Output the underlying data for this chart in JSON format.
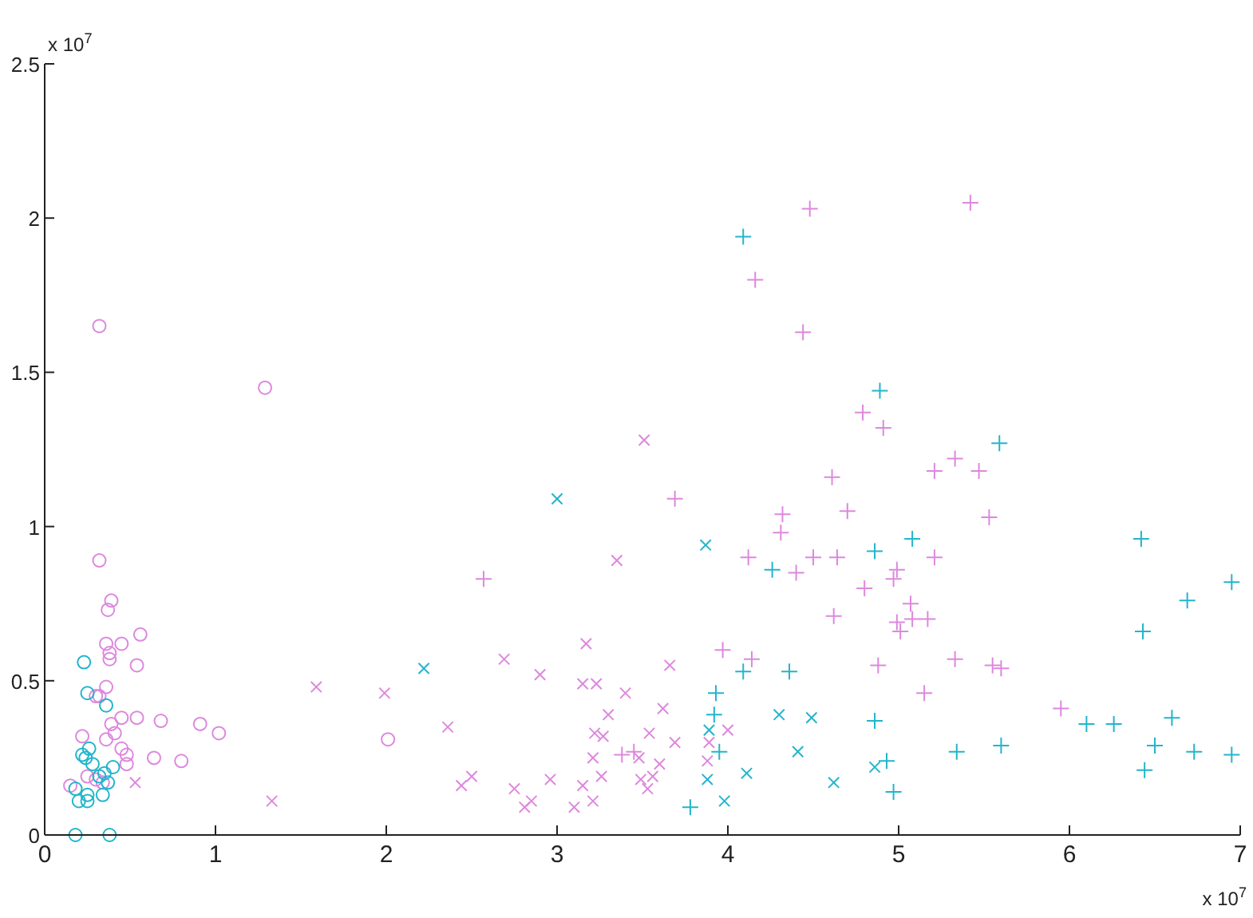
{
  "chart_data": {
    "type": "scatter",
    "xlim": [
      0,
      7
    ],
    "xticks": [
      0,
      1,
      2,
      3,
      4,
      5,
      6,
      7
    ],
    "ylim": [
      0,
      2.5
    ],
    "yticks": [
      0,
      0.5,
      1,
      1.5,
      2,
      2.5
    ],
    "grid": false,
    "annotations": [
      "x 10$^{7}$",
      "x 10$^{7}$"
    ],
    "series": [
      {
        "color": "#dd88dd",
        "marker": "circle",
        "x": [
          0.32,
          1.29,
          0.32,
          0.39,
          0.37,
          0.36,
          0.45,
          0.56,
          0.38,
          0.38,
          0.54,
          0.36,
          0.32,
          0.3,
          0.39,
          0.45,
          0.54,
          0.68,
          0.91,
          1.02,
          0.36,
          0.41,
          0.22,
          0.45,
          0.48,
          0.64,
          0.8,
          0.48,
          0.15,
          0.25,
          0.3,
          0.34,
          2.01
        ],
        "values": [
          1.65,
          1.45,
          0.89,
          0.76,
          0.73,
          0.62,
          0.62,
          0.65,
          0.59,
          0.57,
          0.55,
          0.48,
          0.45,
          0.45,
          0.36,
          0.38,
          0.38,
          0.37,
          0.36,
          0.33,
          0.31,
          0.33,
          0.32,
          0.28,
          0.26,
          0.25,
          0.24,
          0.23,
          0.16,
          0.19,
          0.18,
          0.17,
          0.31
        ]
      },
      {
        "color": "#22b5cc",
        "marker": "circle",
        "x": [
          0.23,
          0.25,
          0.36,
          0.26,
          0.22,
          0.24,
          0.28,
          0.4,
          0.35,
          0.32,
          0.37,
          0.18,
          0.25,
          0.34,
          0.2,
          0.25,
          0.18,
          0.38
        ],
        "values": [
          0.56,
          0.46,
          0.42,
          0.28,
          0.26,
          0.25,
          0.23,
          0.22,
          0.2,
          0.19,
          0.17,
          0.15,
          0.13,
          0.13,
          0.11,
          0.11,
          0,
          0
        ]
      },
      {
        "color": "#dd88dd",
        "marker": "cross",
        "x": [
          1.59,
          1.99,
          2.36,
          2.69,
          2.9,
          3.17,
          3.15,
          3.23,
          3.4,
          3.35,
          3.51,
          3.66,
          3.62,
          3.3,
          3.22,
          3.27,
          3.21,
          3.54,
          3.69,
          4.0,
          3.89,
          3.88,
          3.6,
          3.48,
          3.26,
          2.5,
          2.44,
          2.75,
          2.96,
          3.15,
          3.21,
          3.1,
          2.81,
          2.85,
          3.49,
          3.56,
          3.53,
          1.33,
          0.53
        ],
        "values": [
          0.48,
          0.46,
          0.35,
          0.57,
          0.52,
          0.62,
          0.49,
          0.49,
          0.46,
          0.89,
          1.28,
          0.55,
          0.41,
          0.39,
          0.33,
          0.32,
          0.25,
          0.33,
          0.3,
          0.34,
          0.3,
          0.24,
          0.23,
          0.25,
          0.19,
          0.19,
          0.16,
          0.15,
          0.18,
          0.16,
          0.11,
          0.09,
          0.09,
          0.11,
          0.18,
          0.19,
          0.15,
          0.11,
          0.17
        ]
      },
      {
        "color": "#22b5cc",
        "marker": "cross",
        "x": [
          3.0,
          2.22,
          3.87,
          3.89,
          3.88,
          3.98,
          4.11,
          4.3,
          4.49,
          4.41,
          4.62,
          4.86
        ],
        "values": [
          1.09,
          0.54,
          0.94,
          0.34,
          0.18,
          0.11,
          0.2,
          0.39,
          0.38,
          0.27,
          0.17,
          0.22
        ]
      },
      {
        "color": "#dd88dd",
        "marker": "plus",
        "x": [
          3.69,
          2.57,
          3.97,
          4.12,
          4.48,
          5.42,
          4.16,
          4.44,
          4.79,
          4.91,
          4.61,
          4.7,
          5.21,
          5.33,
          5.47,
          4.32,
          4.31,
          4.5,
          4.64,
          4.4,
          4.8,
          4.99,
          4.97,
          5.21,
          4.62,
          5.07,
          4.99,
          5.01,
          5.08,
          5.17,
          4.14,
          4.88,
          5.33,
          5.15,
          5.53,
          5.55,
          5.6,
          5.95,
          3.38,
          3.45
        ],
        "values": [
          1.09,
          0.83,
          0.6,
          0.9,
          2.03,
          2.05,
          1.8,
          1.63,
          1.37,
          1.32,
          1.16,
          1.05,
          1.18,
          1.22,
          1.18,
          1.04,
          0.98,
          0.9,
          0.9,
          0.85,
          0.8,
          0.86,
          0.83,
          0.9,
          0.71,
          0.75,
          0.69,
          0.66,
          0.7,
          0.7,
          0.57,
          0.55,
          0.57,
          0.46,
          1.03,
          0.55,
          0.54,
          0.41,
          0.26,
          0.27
        ]
      },
      {
        "color": "#22b5cc",
        "marker": "plus",
        "x": [
          4.09,
          4.89,
          5.08,
          4.86,
          4.26,
          4.09,
          4.36,
          3.93,
          3.92,
          3.95,
          3.78,
          4.86,
          4.93,
          4.97,
          5.34,
          5.59,
          6.42,
          6.69,
          6.95,
          6.43,
          5.6,
          6.1,
          6.26,
          6.6,
          6.5,
          6.73,
          6.95,
          6.44
        ],
        "values": [
          1.94,
          1.44,
          0.96,
          0.92,
          0.86,
          0.53,
          0.53,
          0.46,
          0.39,
          0.27,
          0.09,
          0.37,
          0.24,
          0.14,
          0.27,
          1.27,
          0.96,
          0.76,
          0.82,
          0.66,
          0.29,
          0.36,
          0.36,
          0.38,
          0.29,
          0.27,
          0.26,
          0.21
        ]
      }
    ]
  }
}
